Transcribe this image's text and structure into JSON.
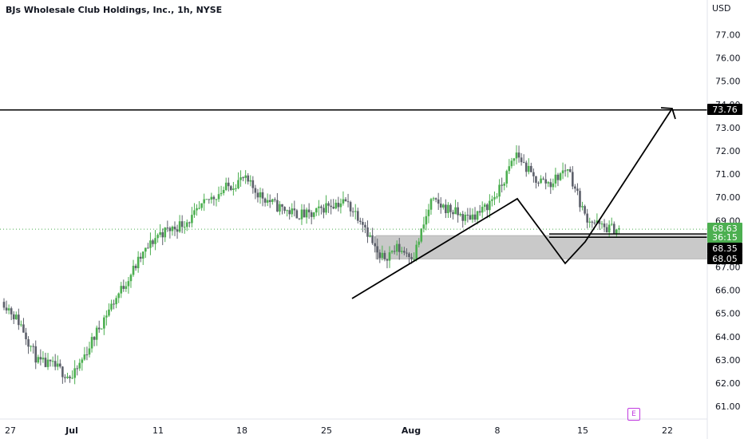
{
  "title": "BJs Wholesale Club Holdings, Inc., 1h, NYSE",
  "currency_label": "USD",
  "event_badge": "E",
  "colors": {
    "up": "#4caf50",
    "down": "#5d606b",
    "line": "#000000",
    "zone": "#c9c9c9",
    "price_tag": "#4caf50",
    "black_tag": "#000000",
    "grid": "#e0e3eb",
    "badge": "#c13be0"
  },
  "chart_data": {
    "type": "candlestick",
    "symbol": "BJ",
    "interval": "1h",
    "exchange": "NYSE",
    "y_ticks": [
      61.0,
      62.0,
      63.0,
      64.0,
      65.0,
      66.0,
      67.0,
      68.0,
      69.0,
      70.0,
      71.0,
      72.0,
      73.0,
      74.0,
      75.0,
      76.0,
      77.0
    ],
    "y_tick_labels": [
      "61.00",
      "62.00",
      "63.00",
      "64.00",
      "65.00",
      "66.00",
      "67.00",
      "68.00",
      "69.00",
      "70.00",
      "71.00",
      "72.00",
      "73.00",
      "74.00",
      "75.00",
      "76.00",
      "77.00"
    ],
    "x_tick_labels": [
      "27",
      "Jul",
      "11",
      "18",
      "25",
      "Aug",
      "8",
      "15",
      "22"
    ],
    "ylim": [
      60.35,
      77.7
    ],
    "trading_days": 37,
    "close_path": [
      [
        0,
        65.5
      ],
      [
        1,
        64.5
      ],
      [
        2,
        62.9
      ],
      [
        3,
        62.7
      ],
      [
        4,
        62.2
      ],
      [
        5,
        63.6
      ],
      [
        6,
        65.0
      ],
      [
        7,
        66.2
      ],
      [
        8,
        67.4
      ],
      [
        9,
        68.4
      ],
      [
        10,
        68.7
      ],
      [
        11,
        69.1
      ],
      [
        12,
        69.9
      ],
      [
        13,
        70.4
      ],
      [
        14,
        70.8
      ],
      [
        15,
        70.1
      ],
      [
        16,
        69.6
      ],
      [
        17,
        69.3
      ],
      [
        18,
        69.2
      ],
      [
        19,
        69.7
      ],
      [
        20,
        69.8
      ],
      [
        21,
        69.0
      ],
      [
        22,
        67.3
      ],
      [
        23,
        67.8
      ],
      [
        24,
        67.5
      ],
      [
        25,
        69.8
      ],
      [
        26,
        69.5
      ],
      [
        27,
        69.1
      ],
      [
        28,
        69.4
      ],
      [
        29,
        70.3
      ],
      [
        30,
        71.9
      ],
      [
        31,
        70.8
      ],
      [
        32,
        70.6
      ],
      [
        33,
        71.3
      ],
      [
        34,
        69.2
      ],
      [
        35,
        68.7
      ],
      [
        36,
        68.63
      ]
    ],
    "horizontal_line": {
      "price": 73.76,
      "label": "73.76"
    },
    "zone": {
      "high": 68.35,
      "low": 67.35
    },
    "lines_at": [
      68.63,
      68.35
    ],
    "price_tags": [
      {
        "value": "68.63",
        "style": "green"
      },
      {
        "value": "36:15",
        "style": "green"
      },
      {
        "value": "68.35",
        "style": "black"
      },
      {
        "value": "68.05",
        "style": "black"
      },
      {
        "value": "73.76",
        "style": "black"
      }
    ],
    "projection_path": [
      {
        "date": "Jul 26",
        "price": 65.7
      },
      {
        "date": "Aug 8",
        "price": 69.95
      },
      {
        "date": "Aug 11",
        "price": 68.1
      },
      {
        "date": "Aug 12",
        "price": 67.15
      },
      {
        "date": "Aug 13",
        "price": 68.0
      },
      {
        "date": "Aug 21",
        "price": 73.76
      }
    ]
  }
}
